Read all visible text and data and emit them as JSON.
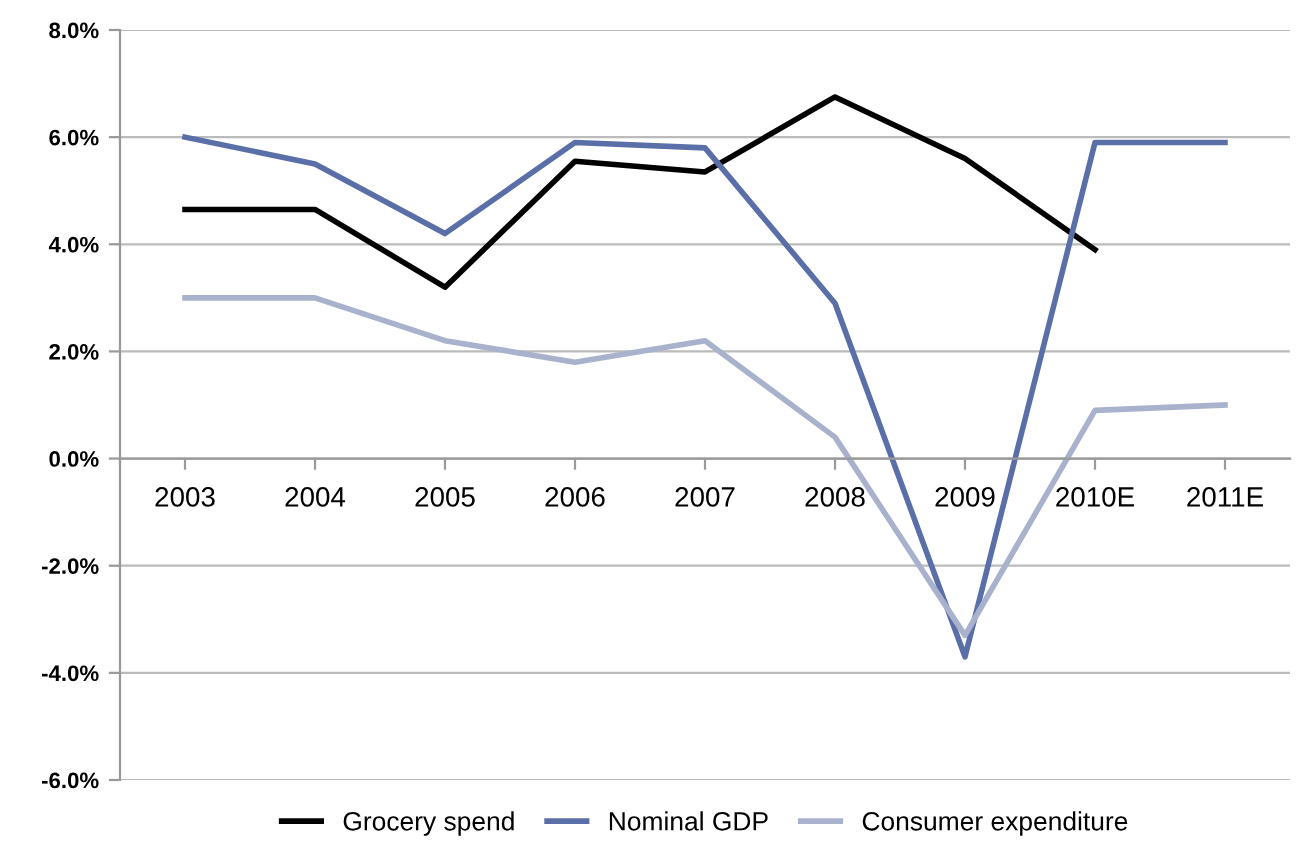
{
  "chart_data": {
    "type": "line",
    "categories": [
      "2003",
      "2004",
      "2005",
      "2006",
      "2007",
      "2008",
      "2009",
      "2010E",
      "2011E"
    ],
    "series": [
      {
        "name": "Grocery spend",
        "color": "#000000",
        "values": [
          4.65,
          4.65,
          3.2,
          5.55,
          5.35,
          6.75,
          5.6,
          3.9,
          null
        ]
      },
      {
        "name": "Nominal GDP",
        "color": "#5a6fa8",
        "values": [
          6.0,
          5.5,
          4.2,
          5.9,
          5.8,
          2.9,
          -3.7,
          5.9,
          5.9
        ]
      },
      {
        "name": "Consumer expenditure",
        "color": "#a9b2cc",
        "values": [
          3.0,
          3.0,
          2.2,
          1.8,
          2.2,
          0.4,
          -3.3,
          0.9,
          1.0
        ]
      }
    ],
    "ylim": [
      -6,
      8
    ],
    "yticks": [
      {
        "value": -6,
        "label": "-6.0%"
      },
      {
        "value": -4,
        "label": "-4.0%"
      },
      {
        "value": -2,
        "label": "-2.0%"
      },
      {
        "value": 0,
        "label": "0.0%"
      },
      {
        "value": 2,
        "label": "2.0%"
      },
      {
        "value": 4,
        "label": "4.0%"
      },
      {
        "value": 6,
        "label": "6.0%"
      },
      {
        "value": 8,
        "label": "8.0%"
      }
    ],
    "grid": "y",
    "legend": "bottom",
    "marker": "none",
    "line_style": "solid"
  }
}
